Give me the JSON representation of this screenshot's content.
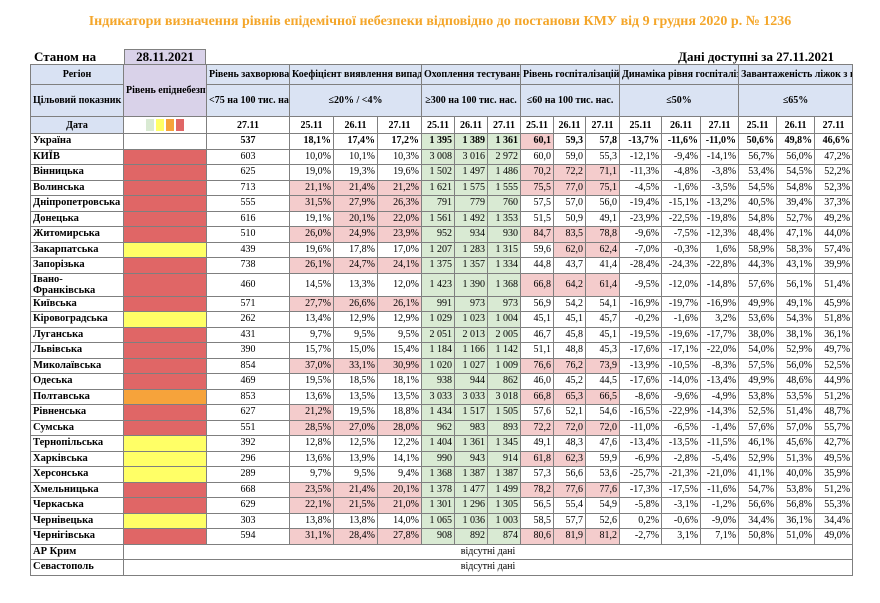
{
  "title": "Індикатори визначення рівнів епідемічної небезпеки відповідно до постанови КМУ від 9 грудня 2020 р. № 1236",
  "as_of": {
    "label": "Станом на",
    "date": "28.11.2021"
  },
  "available": "Дані доступні за 27.11.2021",
  "colors": {
    "red": "#e06666",
    "yellow": "#ffff66",
    "orange": "#f6a33b",
    "pink": "#f4cccc",
    "green": "#d9ead3"
  },
  "header": {
    "region": "Регіон",
    "indicator": "Цільовий показник",
    "date": "Дата",
    "level": "Рівень епіднебезпеки",
    "incidence": "Рівень захворюваності",
    "incidence_target": "<75 на 100 тис. нас.",
    "detection": "Коефіцієнт виявлення випадків інфікування",
    "detection_target": "≤20% / <4%",
    "testing": "Охоплення тестуванням",
    "testing_target": "≥300 на 100 тис. нас.",
    "hosp": "Рівень госпіталізацій",
    "hosp_target": "≤60 на 100 тис. нас.",
    "dynamics": "Динаміка рівня госпіталізацій",
    "dynamics_target": "≤50%",
    "beds": "Завантаженість ліжок з киснем",
    "beds_target": "≤65%",
    "level_swatches": [
      "green",
      "yellow",
      "orange",
      "red"
    ],
    "dates": [
      "27.11",
      "25.11",
      "26.11",
      "27.11",
      "25.11",
      "26.11",
      "27.11",
      "25.11",
      "26.11",
      "27.11",
      "25.11",
      "26.11",
      "27.11",
      "25.11",
      "26.11",
      "27.11"
    ]
  },
  "rows": [
    {
      "name": "Україна",
      "level": "",
      "inc": "537",
      "det": [
        "18,1%",
        "17,4%",
        "17,2%"
      ],
      "test": [
        "1 395",
        "1 389",
        "1 361"
      ],
      "hosp": [
        "60,1",
        "59,3",
        "57,8"
      ],
      "dyn": [
        "-13,7%",
        "-11,6%",
        "-11,0%"
      ],
      "beds": [
        "50,6%",
        "49,8%",
        "46,6%"
      ],
      "bold": true
    },
    {
      "name": "КИЇВ",
      "level": "red",
      "inc": "603",
      "det": [
        "10,0%",
        "10,1%",
        "10,3%"
      ],
      "test": [
        "3 008",
        "3 016",
        "2 972"
      ],
      "hosp": [
        "60,0",
        "59,0",
        "55,3"
      ],
      "dyn": [
        "-12,1%",
        "-9,4%",
        "-14,1%"
      ],
      "beds": [
        "56,7%",
        "56,0%",
        "47,2%"
      ]
    },
    {
      "name": "Вінницька",
      "level": "red",
      "inc": "625",
      "det": [
        "19,0%",
        "19,3%",
        "19,6%"
      ],
      "test": [
        "1 502",
        "1 497",
        "1 486"
      ],
      "hosp": [
        "70,2",
        "72,2",
        "71,1"
      ],
      "dyn": [
        "-11,3%",
        "-4,8%",
        "-3,8%"
      ],
      "beds": [
        "53,4%",
        "54,5%",
        "52,2%"
      ]
    },
    {
      "name": "Волинська",
      "level": "red",
      "inc": "713",
      "det": [
        "21,1%",
        "21,4%",
        "21,2%"
      ],
      "test": [
        "1 621",
        "1 575",
        "1 555"
      ],
      "hosp": [
        "75,5",
        "77,0",
        "75,1"
      ],
      "dyn": [
        "-4,5%",
        "-1,6%",
        "-3,5%"
      ],
      "beds": [
        "54,5%",
        "54,8%",
        "52,3%"
      ]
    },
    {
      "name": "Дніпропетровська",
      "level": "red",
      "inc": "555",
      "det": [
        "31,5%",
        "27,9%",
        "26,3%"
      ],
      "test": [
        "791",
        "779",
        "760"
      ],
      "hosp": [
        "57,5",
        "57,0",
        "56,0"
      ],
      "dyn": [
        "-19,4%",
        "-15,1%",
        "-13,2%"
      ],
      "beds": [
        "40,5%",
        "39,4%",
        "37,3%"
      ]
    },
    {
      "name": "Донецька",
      "level": "red",
      "inc": "616",
      "det": [
        "19,1%",
        "20,1%",
        "22,0%"
      ],
      "test": [
        "1 561",
        "1 492",
        "1 353"
      ],
      "hosp": [
        "51,5",
        "50,9",
        "49,1"
      ],
      "dyn": [
        "-23,9%",
        "-22,5%",
        "-19,8%"
      ],
      "beds": [
        "54,8%",
        "52,7%",
        "49,2%"
      ]
    },
    {
      "name": "Житомирська",
      "level": "red",
      "inc": "510",
      "det": [
        "26,0%",
        "24,9%",
        "23,9%"
      ],
      "test": [
        "952",
        "934",
        "930"
      ],
      "hosp": [
        "84,7",
        "83,5",
        "78,8"
      ],
      "dyn": [
        "-9,6%",
        "-7,5%",
        "-12,3%"
      ],
      "beds": [
        "48,4%",
        "47,1%",
        "44,0%"
      ]
    },
    {
      "name": "Закарпатська",
      "level": "yellow",
      "inc": "439",
      "det": [
        "19,6%",
        "17,8%",
        "17,0%"
      ],
      "test": [
        "1 207",
        "1 283",
        "1 315"
      ],
      "hosp": [
        "59,6",
        "62,0",
        "62,4"
      ],
      "dyn": [
        "-7,0%",
        "-0,3%",
        "1,6%"
      ],
      "beds": [
        "58,9%",
        "58,3%",
        "57,4%"
      ]
    },
    {
      "name": "Запорізька",
      "level": "red",
      "inc": "738",
      "det": [
        "26,1%",
        "24,7%",
        "24,1%"
      ],
      "test": [
        "1 375",
        "1 357",
        "1 334"
      ],
      "hosp": [
        "44,8",
        "43,7",
        "41,4"
      ],
      "dyn": [
        "-28,4%",
        "-24,3%",
        "-22,8%"
      ],
      "beds": [
        "44,3%",
        "43,1%",
        "39,9%"
      ]
    },
    {
      "name": "Івано-Франківська",
      "level": "red",
      "inc": "460",
      "det": [
        "14,5%",
        "13,3%",
        "12,0%"
      ],
      "test": [
        "1 423",
        "1 390",
        "1 368"
      ],
      "hosp": [
        "66,8",
        "64,2",
        "61,4"
      ],
      "dyn": [
        "-9,5%",
        "-12,0%",
        "-14,8%"
      ],
      "beds": [
        "57,6%",
        "56,1%",
        "51,4%"
      ],
      "tall": true
    },
    {
      "name": "Київська",
      "level": "red",
      "inc": "571",
      "det": [
        "27,7%",
        "26,6%",
        "26,1%"
      ],
      "test": [
        "991",
        "973",
        "973"
      ],
      "hosp": [
        "56,9",
        "54,2",
        "54,1"
      ],
      "dyn": [
        "-16,9%",
        "-19,7%",
        "-16,9%"
      ],
      "beds": [
        "49,9%",
        "49,1%",
        "45,9%"
      ]
    },
    {
      "name": "Кіровоградська",
      "level": "yellow",
      "inc": "262",
      "det": [
        "13,4%",
        "12,9%",
        "12,9%"
      ],
      "test": [
        "1 029",
        "1 023",
        "1 004"
      ],
      "hosp": [
        "45,1",
        "45,1",
        "45,7"
      ],
      "dyn": [
        "-0,2%",
        "-1,6%",
        "3,2%"
      ],
      "beds": [
        "53,6%",
        "54,3%",
        "51,8%"
      ]
    },
    {
      "name": "Луганська",
      "level": "red",
      "inc": "431",
      "det": [
        "9,7%",
        "9,5%",
        "9,5%"
      ],
      "test": [
        "2 051",
        "2 013",
        "2 005"
      ],
      "hosp": [
        "46,7",
        "45,8",
        "45,1"
      ],
      "dyn": [
        "-19,5%",
        "-19,6%",
        "-17,7%"
      ],
      "beds": [
        "38,0%",
        "38,1%",
        "36,1%"
      ]
    },
    {
      "name": "Львівська",
      "level": "red",
      "inc": "390",
      "det": [
        "15,7%",
        "15,0%",
        "15,4%"
      ],
      "test": [
        "1 184",
        "1 166",
        "1 142"
      ],
      "hosp": [
        "51,1",
        "48,8",
        "45,3"
      ],
      "dyn": [
        "-17,6%",
        "-17,1%",
        "-22,0%"
      ],
      "beds": [
        "54,0%",
        "52,9%",
        "49,7%"
      ]
    },
    {
      "name": "Миколаївська",
      "level": "red",
      "inc": "854",
      "det": [
        "37,0%",
        "33,1%",
        "30,9%"
      ],
      "test": [
        "1 020",
        "1 027",
        "1 009"
      ],
      "hosp": [
        "76,6",
        "76,2",
        "73,9"
      ],
      "dyn": [
        "-13,9%",
        "-10,5%",
        "-8,3%"
      ],
      "beds": [
        "57,5%",
        "56,0%",
        "52,5%"
      ]
    },
    {
      "name": "Одеська",
      "level": "red",
      "inc": "469",
      "det": [
        "19,5%",
        "18,5%",
        "18,1%"
      ],
      "test": [
        "938",
        "944",
        "862"
      ],
      "hosp": [
        "46,0",
        "45,2",
        "44,5"
      ],
      "dyn": [
        "-17,6%",
        "-14,0%",
        "-13,4%"
      ],
      "beds": [
        "49,9%",
        "48,6%",
        "44,9%"
      ]
    },
    {
      "name": "Полтавська",
      "level": "orange",
      "inc": "853",
      "det": [
        "13,6%",
        "13,5%",
        "13,5%"
      ],
      "test": [
        "3 033",
        "3 033",
        "3 018"
      ],
      "hosp": [
        "66,8",
        "65,3",
        "66,5"
      ],
      "dyn": [
        "-8,6%",
        "-9,6%",
        "-4,9%"
      ],
      "beds": [
        "53,8%",
        "53,5%",
        "51,2%"
      ]
    },
    {
      "name": "Рівненська",
      "level": "red",
      "inc": "627",
      "det": [
        "21,2%",
        "19,5%",
        "18,8%"
      ],
      "test": [
        "1 434",
        "1 517",
        "1 505"
      ],
      "hosp": [
        "57,6",
        "52,1",
        "54,6"
      ],
      "dyn": [
        "-16,5%",
        "-22,9%",
        "-14,3%"
      ],
      "beds": [
        "52,5%",
        "51,4%",
        "48,7%"
      ]
    },
    {
      "name": "Сумська",
      "level": "red",
      "inc": "551",
      "det": [
        "28,5%",
        "27,0%",
        "28,0%"
      ],
      "test": [
        "962",
        "983",
        "893"
      ],
      "hosp": [
        "72,2",
        "72,0",
        "72,0"
      ],
      "dyn": [
        "-11,0%",
        "-6,5%",
        "-1,4%"
      ],
      "beds": [
        "57,6%",
        "57,0%",
        "55,7%"
      ]
    },
    {
      "name": "Тернопільська",
      "level": "yellow",
      "inc": "392",
      "det": [
        "12,8%",
        "12,5%",
        "12,2%"
      ],
      "test": [
        "1 404",
        "1 361",
        "1 345"
      ],
      "hosp": [
        "49,1",
        "48,3",
        "47,6"
      ],
      "dyn": [
        "-13,4%",
        "-13,5%",
        "-11,5%"
      ],
      "beds": [
        "46,1%",
        "45,6%",
        "42,7%"
      ]
    },
    {
      "name": "Харківська",
      "level": "yellow",
      "inc": "296",
      "det": [
        "13,6%",
        "13,9%",
        "14,1%"
      ],
      "test": [
        "990",
        "943",
        "914"
      ],
      "hosp": [
        "61,8",
        "62,3",
        "59,9"
      ],
      "dyn": [
        "-6,9%",
        "-2,8%",
        "-5,4%"
      ],
      "beds": [
        "52,9%",
        "51,3%",
        "49,5%"
      ]
    },
    {
      "name": "Херсонська",
      "level": "yellow",
      "inc": "289",
      "det": [
        "9,7%",
        "9,5%",
        "9,4%"
      ],
      "test": [
        "1 368",
        "1 387",
        "1 387"
      ],
      "hosp": [
        "57,3",
        "56,6",
        "53,6"
      ],
      "dyn": [
        "-25,7%",
        "-21,3%",
        "-21,0%"
      ],
      "beds": [
        "41,1%",
        "40,0%",
        "35,9%"
      ]
    },
    {
      "name": "Хмельницька",
      "level": "red",
      "inc": "668",
      "det": [
        "23,5%",
        "21,4%",
        "20,1%"
      ],
      "test": [
        "1 378",
        "1 477",
        "1 499"
      ],
      "hosp": [
        "78,2",
        "77,6",
        "77,6"
      ],
      "dyn": [
        "-17,3%",
        "-17,5%",
        "-11,6%"
      ],
      "beds": [
        "54,7%",
        "53,8%",
        "51,2%"
      ]
    },
    {
      "name": "Черкаська",
      "level": "red",
      "inc": "629",
      "det": [
        "22,1%",
        "21,5%",
        "21,0%"
      ],
      "test": [
        "1 301",
        "1 296",
        "1 305"
      ],
      "hosp": [
        "56,5",
        "55,4",
        "54,9"
      ],
      "dyn": [
        "-5,8%",
        "-3,1%",
        "-1,2%"
      ],
      "beds": [
        "56,6%",
        "56,8%",
        "55,3%"
      ]
    },
    {
      "name": "Чернівецька",
      "level": "yellow",
      "inc": "303",
      "det": [
        "13,8%",
        "13,8%",
        "14,0%"
      ],
      "test": [
        "1 065",
        "1 036",
        "1 003"
      ],
      "hosp": [
        "58,5",
        "57,7",
        "52,6"
      ],
      "dyn": [
        "0,2%",
        "-0,6%",
        "-9,0%"
      ],
      "beds": [
        "34,4%",
        "36,1%",
        "34,4%"
      ]
    },
    {
      "name": "Чернігівська",
      "level": "red",
      "inc": "594",
      "det": [
        "31,1%",
        "28,4%",
        "27,8%"
      ],
      "test": [
        "908",
        "892",
        "874"
      ],
      "hosp": [
        "80,6",
        "81,9",
        "81,2"
      ],
      "dyn": [
        "-2,7%",
        "3,1%",
        "7,1%"
      ],
      "beds": [
        "50,8%",
        "51,0%",
        "49,0%"
      ]
    }
  ],
  "missing": [
    {
      "name": "АР Крим",
      "text": "відсутні дані"
    },
    {
      "name": "Севастополь",
      "text": "відсутні дані"
    }
  ]
}
